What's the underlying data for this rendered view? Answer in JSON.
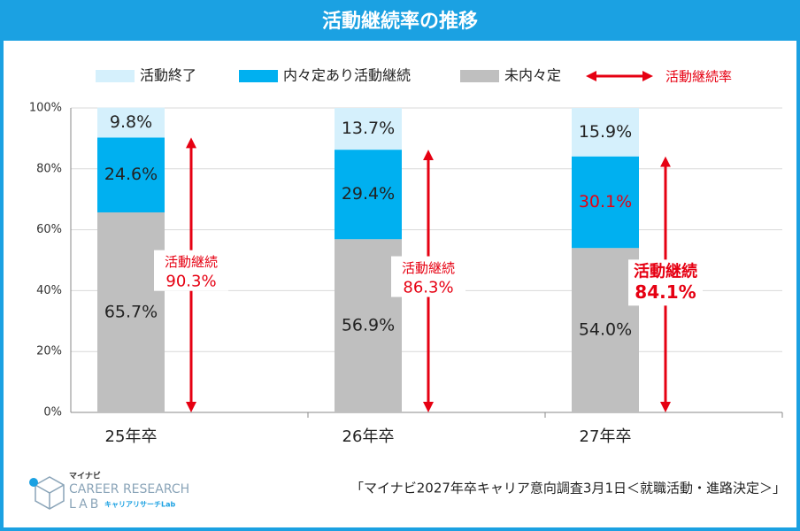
{
  "chart_data": {
    "type": "stacked_bar",
    "title": "活動継続率の推移",
    "categories": [
      "25年卒",
      "26年卒",
      "27年卒"
    ],
    "series": [
      {
        "name": "未内々定",
        "color": "#bfbfbf",
        "values": [
          65.7,
          56.9,
          54.0
        ],
        "value_labels": [
          "65.7%",
          "56.9%",
          "54.0%"
        ]
      },
      {
        "name": "内々定あり活動継続",
        "color": "#00b0f0",
        "values": [
          24.6,
          29.4,
          30.1
        ],
        "value_labels": [
          "24.6%",
          "29.4%",
          "30.1%"
        ]
      },
      {
        "name": "活動終了",
        "color": "#d5f0fc",
        "values": [
          9.8,
          13.7,
          15.9
        ],
        "value_labels": [
          "9.8%",
          "13.7%",
          "15.9%"
        ]
      }
    ],
    "continuation": {
      "name": "活動継続率",
      "label": "活動継続",
      "color": "#e60012",
      "values": [
        90.3,
        86.3,
        84.1
      ],
      "value_labels": [
        "90.3%",
        "86.3%",
        "84.1%"
      ]
    },
    "ylim": [
      0,
      100
    ],
    "yticks": [
      {
        "value": 0,
        "label": "0%"
      },
      {
        "value": 20,
        "label": "20%"
      },
      {
        "value": 40,
        "label": "40%"
      },
      {
        "value": 60,
        "label": "60%"
      },
      {
        "value": 80,
        "label": "80%"
      },
      {
        "value": 100,
        "label": "100%"
      }
    ],
    "grid": true
  },
  "footer": {
    "source": "「マイナビ2027年卒キャリア意向調査3月1日＜就職活動・進路決定＞」",
    "logo": {
      "brand": "マイナビ",
      "line1": "CAREER RESEARCH",
      "line2": "LAB",
      "sub": "キャリアリサーチLab"
    }
  }
}
